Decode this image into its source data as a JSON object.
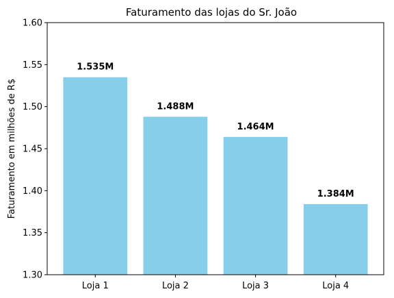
{
  "chart_data": {
    "type": "bar",
    "title": "Faturamento das lojas do Sr. João",
    "xlabel": "",
    "ylabel": "Faturamento em milhões de R$",
    "categories": [
      "Loja 1",
      "Loja 2",
      "Loja 3",
      "Loja 4"
    ],
    "values": [
      1.535,
      1.488,
      1.464,
      1.384
    ],
    "data_labels": [
      "1.535M",
      "1.488M",
      "1.464M",
      "1.384M"
    ],
    "ylim": [
      1.3,
      1.6
    ],
    "yticks": [
      "1.30",
      "1.35",
      "1.40",
      "1.45",
      "1.50",
      "1.55",
      "1.60"
    ],
    "bar_color": "#87CEEB",
    "grid": false,
    "legend": "none"
  }
}
